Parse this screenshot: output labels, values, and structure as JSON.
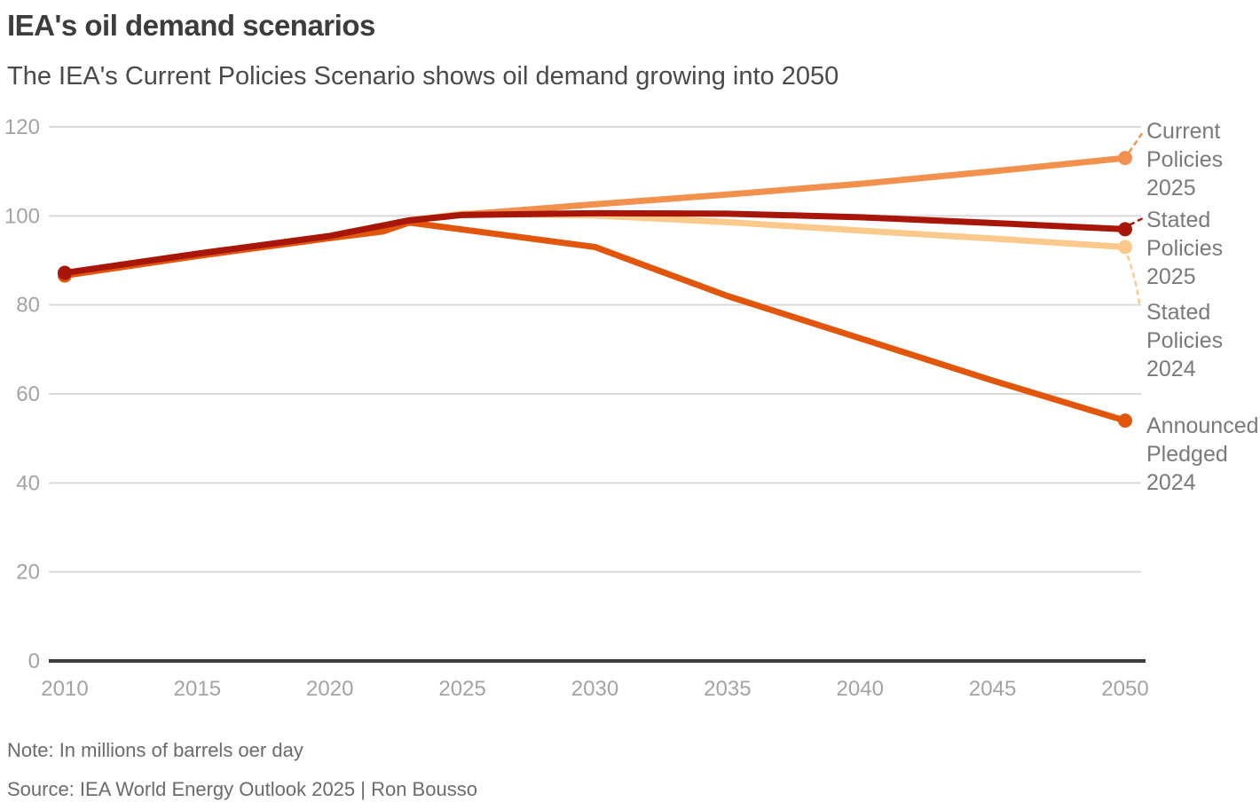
{
  "header": {
    "title": "IEA's oil demand scenarios",
    "subtitle": "The IEA's Current Policies Scenario shows oil demand growing into 2050"
  },
  "footer": {
    "note": "Note: In millions of barrels oer day",
    "source": "Source: IEA World Energy Outlook 2025 | Ron Bousso"
  },
  "colors": {
    "grid": "#d9d9d9",
    "axis": "#3d3d3d",
    "tick_label": "#a3a3a3",
    "series_label": "#7a7a7a"
  },
  "chart_data": {
    "type": "line",
    "title": "IEA's oil demand scenarios",
    "subtitle": "The IEA's Current Policies Scenario shows oil demand growing into 2050",
    "xlabel": "",
    "ylabel": "In millions of barrels per day",
    "xlim": [
      2010,
      2050
    ],
    "ylim": [
      0,
      120
    ],
    "x_ticks": [
      2010,
      2015,
      2020,
      2025,
      2030,
      2035,
      2040,
      2045,
      2050
    ],
    "y_ticks": [
      0,
      20,
      40,
      60,
      80,
      100,
      120
    ],
    "grid": "horizontal",
    "legend_position": "right-edge-labels",
    "series": [
      {
        "name": "Current Policies 2025",
        "label_lines": [
          "Current",
          "Policies",
          "2025"
        ],
        "color": "#F2914E",
        "x": [
          2010,
          2015,
          2020,
          2023,
          2025,
          2030,
          2035,
          2040,
          2045,
          2050
        ],
        "values": [
          87.2,
          91.5,
          95.5,
          99,
          100.3,
          102.6,
          104.8,
          107.2,
          110,
          113
        ],
        "end_value_2050": 113
      },
      {
        "name": "Stated Policies 2025",
        "label_lines": [
          "Stated",
          "Policies",
          "2025"
        ],
        "color": "#A81509",
        "x": [
          2010,
          2015,
          2020,
          2023,
          2025,
          2030,
          2035,
          2040,
          2045,
          2050
        ],
        "values": [
          87.2,
          91.5,
          95.5,
          99,
          100.2,
          100.6,
          100.5,
          99.7,
          98.4,
          97
        ],
        "end_value_2050": 97
      },
      {
        "name": "Stated Policies 2024",
        "label_lines": [
          "Stated",
          "Policies",
          "2024"
        ],
        "color": "#FAC98B",
        "x": [
          2023,
          2025,
          2030,
          2035,
          2040,
          2045,
          2050
        ],
        "values": [
          99,
          100.5,
          100.1,
          98.6,
          96.7,
          94.9,
          93
        ],
        "end_value_2050": 93
      },
      {
        "name": "Announced Pledged 2024",
        "label_lines": [
          "Announced",
          "Pledged",
          "2024"
        ],
        "color": "#E2560B",
        "x": [
          2010,
          2015,
          2020,
          2022,
          2023,
          2030,
          2035,
          2040,
          2045,
          2050
        ],
        "values": [
          86.6,
          91,
          95,
          96.5,
          98.5,
          93,
          82,
          72.5,
          63,
          54
        ],
        "end_value_2050": 54
      }
    ],
    "start_dot": {
      "x": 2010,
      "value": 87
    }
  }
}
